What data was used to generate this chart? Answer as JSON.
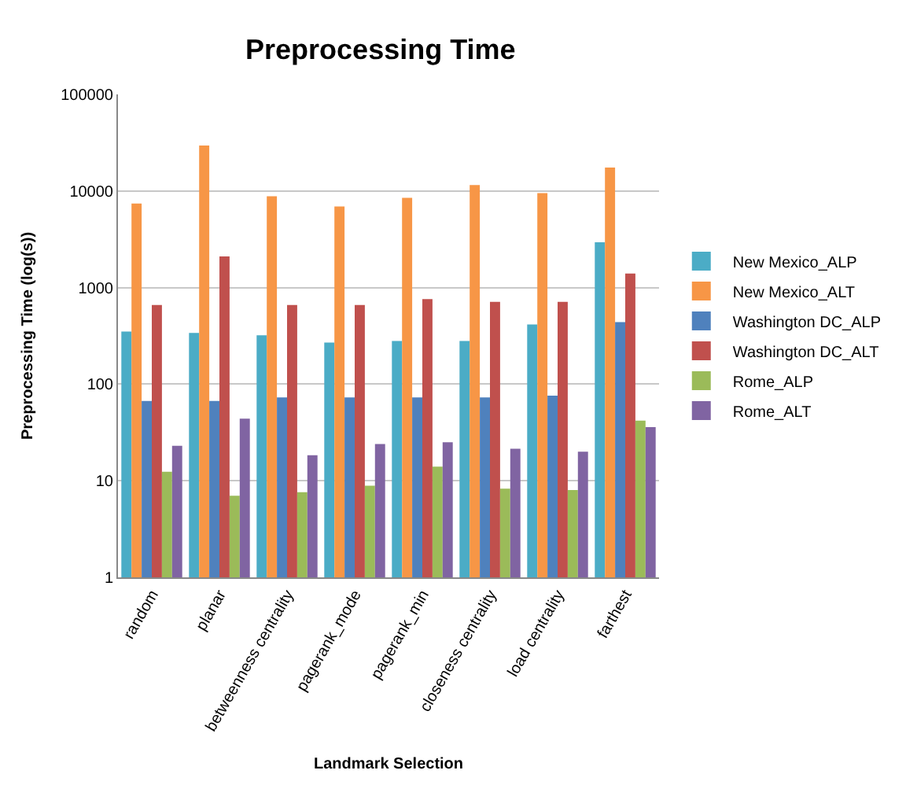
{
  "chart_data": {
    "type": "bar",
    "title": "Preprocessing Time",
    "xlabel": "Landmark Selection",
    "ylabel": "Preprocessing Time (log(s))",
    "categories": [
      "random",
      "planar",
      "betweenness centrality",
      "pagerank_mode",
      "pagerank_min",
      "closeness centrality",
      "load centrality",
      "farthest"
    ],
    "series": [
      {
        "name": "New Mexico_ALP",
        "color": "#4bacc6",
        "values": [
          350,
          340,
          320,
          270,
          280,
          280,
          415,
          2950
        ]
      },
      {
        "name": "New Mexico_ALT",
        "color": "#f79646",
        "values": [
          7400,
          29500,
          8800,
          6900,
          8500,
          11500,
          9500,
          17500
        ]
      },
      {
        "name": "Washington DC_ALP",
        "color": "#4f81bd",
        "values": [
          67,
          67,
          73,
          73,
          73,
          73,
          76,
          440
        ]
      },
      {
        "name": "Washington DC_ALT",
        "color": "#c0504d",
        "values": [
          660,
          2100,
          660,
          660,
          760,
          710,
          710,
          1400
        ]
      },
      {
        "name": "Rome_ALP",
        "color": "#9bbb59",
        "values": [
          12.4,
          7,
          7.6,
          8.9,
          14,
          8.3,
          8,
          42
        ]
      },
      {
        "name": "Rome_ALT",
        "color": "#8064a2",
        "values": [
          23,
          44,
          18.4,
          24,
          25,
          21.5,
          20,
          36
        ]
      }
    ],
    "log": "y",
    "ylim": [
      1,
      100000
    ],
    "yticks": [
      1,
      10,
      100,
      1000,
      10000,
      100000
    ],
    "grid": "y",
    "legend": "right"
  }
}
